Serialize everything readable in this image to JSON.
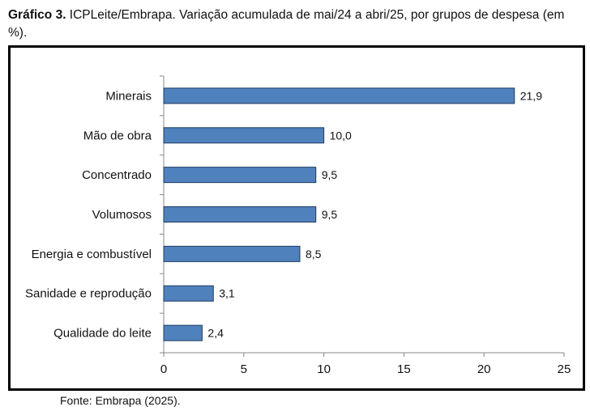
{
  "caption": {
    "lead": "Gráfico 3.",
    "text": " ICPLeite/Embrapa. Variação acumulada de mai/24 a abri/25, por grupos de despesa (em %)."
  },
  "source": "Fonte: Embrapa (2025).",
  "chart_data": {
    "type": "bar",
    "orientation": "horizontal",
    "title": "",
    "xlabel": "",
    "ylabel": "",
    "categories": [
      "Minerais",
      "Mão de obra",
      "Concentrado",
      "Volumosos",
      "Energia e combustível",
      "Sanidade e reprodução",
      "Qualidade do leite"
    ],
    "values": [
      21.9,
      10.0,
      9.5,
      9.5,
      8.5,
      3.1,
      2.4
    ],
    "data_labels": [
      "21,9",
      "10,0",
      "9,5",
      "9,5",
      "8,5",
      "3,1",
      "2,4"
    ],
    "xlim": [
      0,
      25
    ],
    "xticks": [
      0,
      5,
      10,
      15,
      20,
      25
    ],
    "grid": false,
    "legend": "none",
    "bar_color": "#4f81bd",
    "bar_edge_color": "#1f3b63"
  }
}
